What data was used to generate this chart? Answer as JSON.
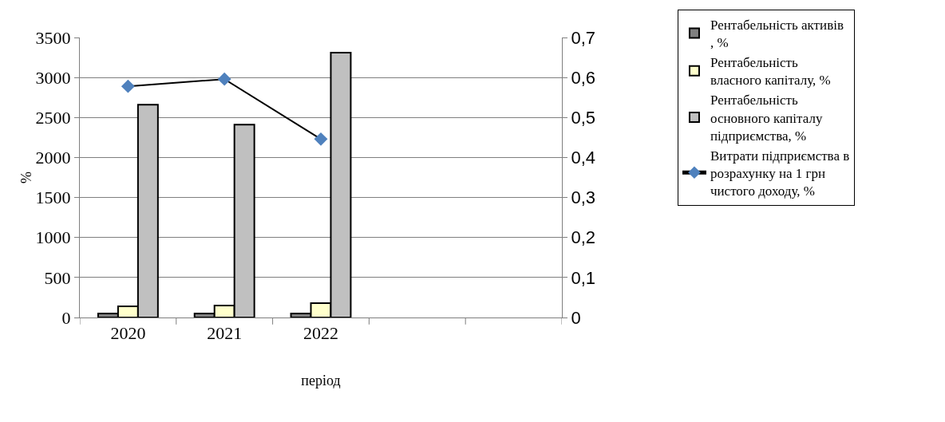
{
  "chart_data": {
    "type": "bar",
    "categories": [
      "2020",
      "2021",
      "2022",
      null,
      null
    ],
    "series": [
      {
        "name": "Рентабельність активів , %",
        "color": "#808080",
        "values": [
          50,
          50,
          50,
          null,
          null
        ]
      },
      {
        "name": "Рентабельність власного капіталу, %",
        "color": "#ffffcc",
        "values": [
          140,
          150,
          180,
          null,
          null
        ]
      },
      {
        "name": "Рентабельність основного капіталу підприємства, %",
        "color": "#c0c0c0",
        "values": [
          2660,
          2410,
          3310,
          null,
          null
        ]
      },
      {
        "name": "Витрати підприємства в розрахунку на 1 грн чистого доходу, %",
        "type": "line",
        "axis": "y2",
        "color": "#4f81bd",
        "marker": "diamond",
        "values": [
          0.578,
          0.596,
          0.446,
          null,
          null
        ]
      }
    ],
    "xlabel": "період",
    "ylabel": "%",
    "ylim": [
      0,
      3500
    ],
    "yticks": [
      0,
      500,
      1000,
      1500,
      2000,
      2500,
      3000,
      3500
    ],
    "y2lim": [
      0,
      0.7
    ],
    "y2ticks": [
      {
        "value": 0,
        "label": "0"
      },
      {
        "value": 0.1,
        "label": "0,1"
      },
      {
        "value": 0.2,
        "label": "0,2"
      },
      {
        "value": 0.3,
        "label": "0,3"
      },
      {
        "value": 0.4,
        "label": "0,4"
      },
      {
        "value": 0.5,
        "label": "0,5"
      },
      {
        "value": 0.6,
        "label": "0,6"
      },
      {
        "value": 0.7,
        "label": "0,7"
      }
    ],
    "grid": "y",
    "legend": "right"
  }
}
